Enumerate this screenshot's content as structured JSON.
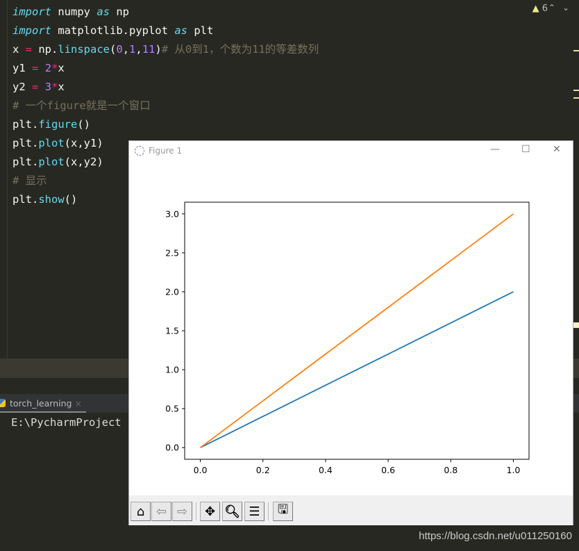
{
  "editor": {
    "lines": [
      [
        [
          "kw",
          "import"
        ],
        [
          "",
          "numpy"
        ],
        [
          "kw",
          "as"
        ],
        [
          "",
          "np"
        ]
      ],
      [
        [
          "kw",
          "import"
        ],
        [
          "",
          "matplotlib.pyplot"
        ],
        [
          "kw",
          "as"
        ],
        [
          "",
          "plt"
        ]
      ]
    ],
    "code": [
      "import numpy as np",
      "import matplotlib.pyplot as plt",
      "x = np.linspace(0,1,11)# 从0到1，个数为11的等差数列",
      "y1 = 2*x",
      "y2 = 3*x",
      "# 一个figure就是一个窗口",
      "plt.figure()",
      "plt.plot(x,y1)",
      "plt.plot(x,y2)",
      "# 显示",
      "plt.show()"
    ],
    "warning_count": "6"
  },
  "run": {
    "tab_label": "torch_learning",
    "console_text": "E:\\PycharmProject"
  },
  "figure": {
    "title": "Figure 1",
    "toolbar": [
      "home-icon",
      "back-icon",
      "forward-icon",
      "pan-icon",
      "zoom-icon",
      "configure-subplots-icon",
      "save-icon"
    ]
  },
  "chart_data": {
    "type": "line",
    "x": [
      0,
      0.1,
      0.2,
      0.3,
      0.4,
      0.5,
      0.6,
      0.7,
      0.8,
      0.9,
      1.0
    ],
    "series": [
      {
        "values": [
          0,
          0.2,
          0.4,
          0.6,
          0.8,
          1.0,
          1.2,
          1.4,
          1.6,
          1.8,
          2.0
        ],
        "color": "#1f77b4"
      },
      {
        "values": [
          0,
          0.3,
          0.6,
          0.9,
          1.2,
          1.5,
          1.8,
          2.1,
          2.4,
          2.7,
          3.0
        ],
        "color": "#ff7f0e"
      }
    ],
    "xlim": [
      -0.05,
      1.05
    ],
    "ylim": [
      -0.15,
      3.15
    ],
    "xticks": [
      "0.0",
      "0.2",
      "0.4",
      "0.6",
      "0.8",
      "1.0"
    ],
    "yticks": [
      "0.0",
      "0.5",
      "1.0",
      "1.5",
      "2.0",
      "2.5",
      "3.0"
    ],
    "grid": false
  },
  "watermark": "https://blog.csdn.net/u011250160"
}
